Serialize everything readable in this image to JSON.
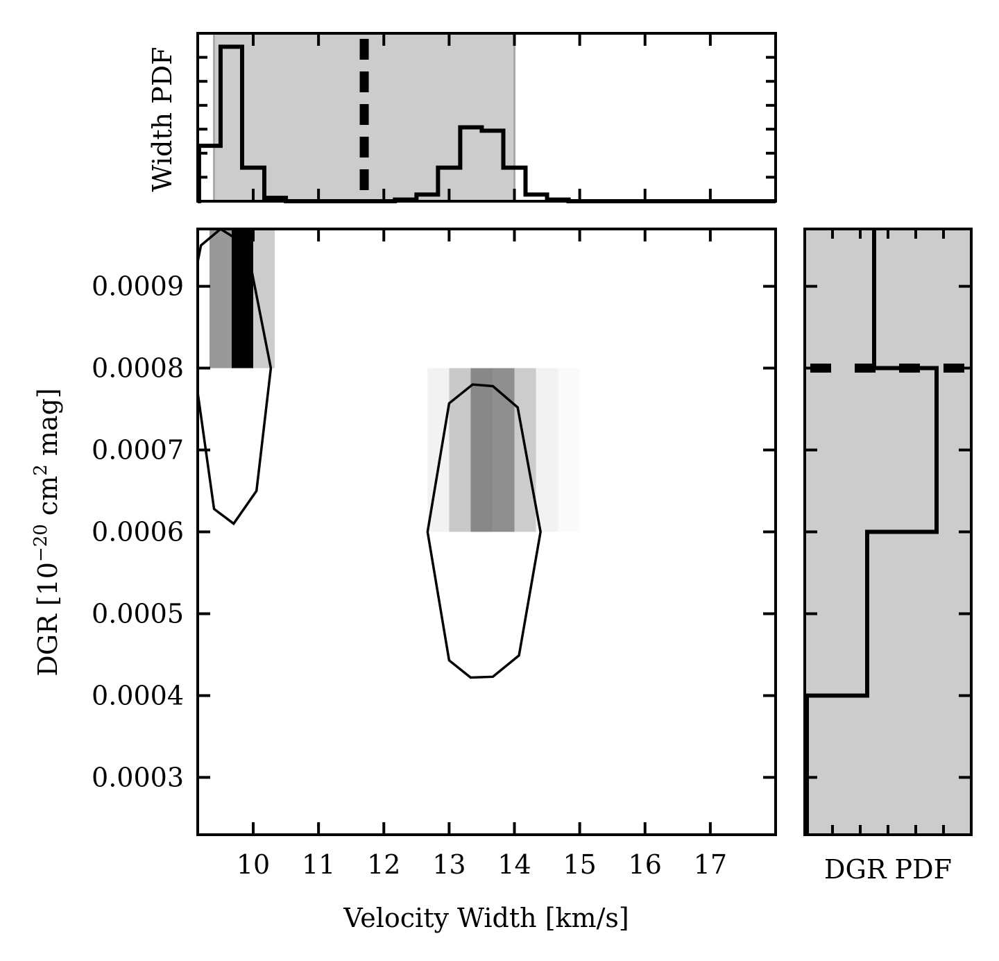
{
  "chart_data": [
    {
      "panel": "joint",
      "type": "heatmap",
      "xlabel": "Velocity Width [km/s]",
      "ylabel_parts": [
        "DGR [10",
        "−20",
        " cm",
        "2",
        " mag]"
      ],
      "xlim": [
        9.15,
        18.0
      ],
      "ylim": [
        0.00023,
        0.00097
      ],
      "xticks": [
        10,
        11,
        12,
        13,
        14,
        15,
        16,
        17
      ],
      "yticks": [
        0.0003,
        0.0004,
        0.0005,
        0.0006,
        0.0007,
        0.0008,
        0.0009
      ],
      "ytick_labels": [
        "0.0003",
        "0.0004",
        "0.0005",
        "0.0006",
        "0.0007",
        "0.0008",
        "0.0009"
      ],
      "cells": [
        {
          "x0": 9.0,
          "x1": 9.33,
          "y0": 0.0008,
          "y1": 0.001,
          "shade": "#ffffff"
        },
        {
          "x0": 9.33,
          "x1": 9.67,
          "y0": 0.0008,
          "y1": 0.001,
          "shade": "#999999"
        },
        {
          "x0": 9.67,
          "x1": 10.0,
          "y0": 0.0008,
          "y1": 0.001,
          "shade": "#000000"
        },
        {
          "x0": 10.0,
          "x1": 10.33,
          "y0": 0.0008,
          "y1": 0.001,
          "shade": "#cccccc"
        },
        {
          "x0": 12.67,
          "x1": 13.0,
          "y0": 0.0006,
          "y1": 0.0008,
          "shade": "#f2f2f2"
        },
        {
          "x0": 13.0,
          "x1": 13.33,
          "y0": 0.0006,
          "y1": 0.0008,
          "shade": "#c9c9c9"
        },
        {
          "x0": 13.33,
          "x1": 13.67,
          "y0": 0.0006,
          "y1": 0.0008,
          "shade": "#888888"
        },
        {
          "x0": 13.67,
          "x1": 14.0,
          "y0": 0.0006,
          "y1": 0.0008,
          "shade": "#8f8f8f"
        },
        {
          "x0": 14.0,
          "x1": 14.33,
          "y0": 0.0006,
          "y1": 0.0008,
          "shade": "#cccccc"
        },
        {
          "x0": 14.33,
          "x1": 14.67,
          "y0": 0.0006,
          "y1": 0.0008,
          "shade": "#f2f2f2"
        },
        {
          "x0": 14.67,
          "x1": 15.0,
          "y0": 0.0006,
          "y1": 0.0008,
          "shade": "#fafafa"
        }
      ],
      "contours": [
        [
          [
            9.2,
            0.00095
          ],
          [
            9.5,
            0.00098
          ],
          [
            9.9,
            0.00095
          ],
          [
            10.27,
            0.0008
          ],
          [
            10.05,
            0.00065
          ],
          [
            9.7,
            0.00061
          ],
          [
            9.4,
            0.000628
          ],
          [
            9.15,
            0.00077
          ],
          [
            9.15,
            0.00093
          ]
        ],
        [
          [
            12.67,
            0.0006
          ],
          [
            13.0,
            0.000757
          ],
          [
            13.36,
            0.00078
          ],
          [
            13.67,
            0.000778
          ],
          [
            14.05,
            0.000752
          ],
          [
            14.4,
            0.0006
          ],
          [
            14.07,
            0.000449
          ],
          [
            13.67,
            0.000423
          ],
          [
            13.33,
            0.000422
          ],
          [
            13.0,
            0.000443
          ]
        ]
      ]
    },
    {
      "panel": "width-pdf",
      "type": "line",
      "ylabel": "Width PDF",
      "step_x": [
        9.15,
        9.17,
        9.17,
        9.5,
        9.5,
        9.83,
        9.83,
        10.17,
        10.17,
        10.5,
        10.5,
        12.17,
        12.17,
        12.5,
        12.5,
        12.83,
        12.83,
        13.17,
        13.17,
        13.5,
        13.5,
        13.83,
        13.83,
        14.17,
        14.17,
        14.5,
        14.5,
        14.83,
        14.83,
        18.0
      ],
      "step_y": [
        0.0,
        0.0,
        0.33,
        0.33,
        0.92,
        0.92,
        0.2,
        0.2,
        0.02,
        0.02,
        0.0,
        0.0,
        0.01,
        0.01,
        0.04,
        0.04,
        0.2,
        0.2,
        0.44,
        0.44,
        0.42,
        0.42,
        0.2,
        0.2,
        0.04,
        0.04,
        0.01,
        0.01,
        0.0,
        0.0
      ],
      "ylim": [
        0,
        1.0
      ],
      "yticks": [
        0.143,
        0.286,
        0.429,
        0.571,
        0.714,
        0.857
      ],
      "shaded_interval": [
        9.4,
        14.0
      ],
      "median": 11.7
    },
    {
      "panel": "dgr-pdf",
      "type": "line",
      "xlabel": "DGR PDF",
      "step_pdf": [
        0.0,
        0.0,
        0.45,
        0.45,
        0.95,
        0.95,
        0.5,
        0.5
      ],
      "step_dgr": [
        0.00023,
        0.0004,
        0.0004,
        0.0006,
        0.0006,
        0.0008,
        0.0008,
        0.00097
      ],
      "xlim": [
        0,
        1.2
      ],
      "xticks": [
        0.2,
        0.4,
        0.6,
        0.8,
        1.0
      ],
      "shaded_interval": [
        0.00023,
        0.00097
      ],
      "median": 0.0008
    }
  ]
}
